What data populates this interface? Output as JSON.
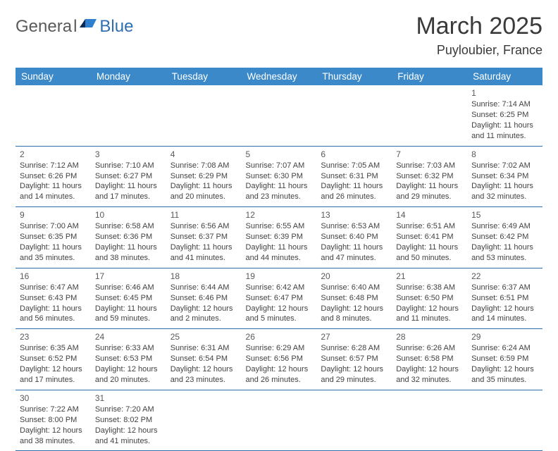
{
  "header": {
    "logo_general": "Genera",
    "logo_l": "l",
    "logo_blue": "Blue",
    "title": "March 2025",
    "location": "Puyloubier, France"
  },
  "colors": {
    "header_bg": "#3b89c9",
    "header_text": "#ffffff",
    "row_border": "#2f6fb0",
    "body_text": "#424242",
    "title_text": "#3a3a3a",
    "logo_gray": "#5a5a5a",
    "logo_blue": "#2f6fb0",
    "background": "#ffffff"
  },
  "calendar": {
    "day_headers": [
      "Sunday",
      "Monday",
      "Tuesday",
      "Wednesday",
      "Thursday",
      "Friday",
      "Saturday"
    ],
    "weeks": [
      [
        null,
        null,
        null,
        null,
        null,
        null,
        {
          "day": "1",
          "sunrise": "Sunrise: 7:14 AM",
          "sunset": "Sunset: 6:25 PM",
          "daylight": "Daylight: 11 hours and 11 minutes."
        }
      ],
      [
        {
          "day": "2",
          "sunrise": "Sunrise: 7:12 AM",
          "sunset": "Sunset: 6:26 PM",
          "daylight": "Daylight: 11 hours and 14 minutes."
        },
        {
          "day": "3",
          "sunrise": "Sunrise: 7:10 AM",
          "sunset": "Sunset: 6:27 PM",
          "daylight": "Daylight: 11 hours and 17 minutes."
        },
        {
          "day": "4",
          "sunrise": "Sunrise: 7:08 AM",
          "sunset": "Sunset: 6:29 PM",
          "daylight": "Daylight: 11 hours and 20 minutes."
        },
        {
          "day": "5",
          "sunrise": "Sunrise: 7:07 AM",
          "sunset": "Sunset: 6:30 PM",
          "daylight": "Daylight: 11 hours and 23 minutes."
        },
        {
          "day": "6",
          "sunrise": "Sunrise: 7:05 AM",
          "sunset": "Sunset: 6:31 PM",
          "daylight": "Daylight: 11 hours and 26 minutes."
        },
        {
          "day": "7",
          "sunrise": "Sunrise: 7:03 AM",
          "sunset": "Sunset: 6:32 PM",
          "daylight": "Daylight: 11 hours and 29 minutes."
        },
        {
          "day": "8",
          "sunrise": "Sunrise: 7:02 AM",
          "sunset": "Sunset: 6:34 PM",
          "daylight": "Daylight: 11 hours and 32 minutes."
        }
      ],
      [
        {
          "day": "9",
          "sunrise": "Sunrise: 7:00 AM",
          "sunset": "Sunset: 6:35 PM",
          "daylight": "Daylight: 11 hours and 35 minutes."
        },
        {
          "day": "10",
          "sunrise": "Sunrise: 6:58 AM",
          "sunset": "Sunset: 6:36 PM",
          "daylight": "Daylight: 11 hours and 38 minutes."
        },
        {
          "day": "11",
          "sunrise": "Sunrise: 6:56 AM",
          "sunset": "Sunset: 6:37 PM",
          "daylight": "Daylight: 11 hours and 41 minutes."
        },
        {
          "day": "12",
          "sunrise": "Sunrise: 6:55 AM",
          "sunset": "Sunset: 6:39 PM",
          "daylight": "Daylight: 11 hours and 44 minutes."
        },
        {
          "day": "13",
          "sunrise": "Sunrise: 6:53 AM",
          "sunset": "Sunset: 6:40 PM",
          "daylight": "Daylight: 11 hours and 47 minutes."
        },
        {
          "day": "14",
          "sunrise": "Sunrise: 6:51 AM",
          "sunset": "Sunset: 6:41 PM",
          "daylight": "Daylight: 11 hours and 50 minutes."
        },
        {
          "day": "15",
          "sunrise": "Sunrise: 6:49 AM",
          "sunset": "Sunset: 6:42 PM",
          "daylight": "Daylight: 11 hours and 53 minutes."
        }
      ],
      [
        {
          "day": "16",
          "sunrise": "Sunrise: 6:47 AM",
          "sunset": "Sunset: 6:43 PM",
          "daylight": "Daylight: 11 hours and 56 minutes."
        },
        {
          "day": "17",
          "sunrise": "Sunrise: 6:46 AM",
          "sunset": "Sunset: 6:45 PM",
          "daylight": "Daylight: 11 hours and 59 minutes."
        },
        {
          "day": "18",
          "sunrise": "Sunrise: 6:44 AM",
          "sunset": "Sunset: 6:46 PM",
          "daylight": "Daylight: 12 hours and 2 minutes."
        },
        {
          "day": "19",
          "sunrise": "Sunrise: 6:42 AM",
          "sunset": "Sunset: 6:47 PM",
          "daylight": "Daylight: 12 hours and 5 minutes."
        },
        {
          "day": "20",
          "sunrise": "Sunrise: 6:40 AM",
          "sunset": "Sunset: 6:48 PM",
          "daylight": "Daylight: 12 hours and 8 minutes."
        },
        {
          "day": "21",
          "sunrise": "Sunrise: 6:38 AM",
          "sunset": "Sunset: 6:50 PM",
          "daylight": "Daylight: 12 hours and 11 minutes."
        },
        {
          "day": "22",
          "sunrise": "Sunrise: 6:37 AM",
          "sunset": "Sunset: 6:51 PM",
          "daylight": "Daylight: 12 hours and 14 minutes."
        }
      ],
      [
        {
          "day": "23",
          "sunrise": "Sunrise: 6:35 AM",
          "sunset": "Sunset: 6:52 PM",
          "daylight": "Daylight: 12 hours and 17 minutes."
        },
        {
          "day": "24",
          "sunrise": "Sunrise: 6:33 AM",
          "sunset": "Sunset: 6:53 PM",
          "daylight": "Daylight: 12 hours and 20 minutes."
        },
        {
          "day": "25",
          "sunrise": "Sunrise: 6:31 AM",
          "sunset": "Sunset: 6:54 PM",
          "daylight": "Daylight: 12 hours and 23 minutes."
        },
        {
          "day": "26",
          "sunrise": "Sunrise: 6:29 AM",
          "sunset": "Sunset: 6:56 PM",
          "daylight": "Daylight: 12 hours and 26 minutes."
        },
        {
          "day": "27",
          "sunrise": "Sunrise: 6:28 AM",
          "sunset": "Sunset: 6:57 PM",
          "daylight": "Daylight: 12 hours and 29 minutes."
        },
        {
          "day": "28",
          "sunrise": "Sunrise: 6:26 AM",
          "sunset": "Sunset: 6:58 PM",
          "daylight": "Daylight: 12 hours and 32 minutes."
        },
        {
          "day": "29",
          "sunrise": "Sunrise: 6:24 AM",
          "sunset": "Sunset: 6:59 PM",
          "daylight": "Daylight: 12 hours and 35 minutes."
        }
      ],
      [
        {
          "day": "30",
          "sunrise": "Sunrise: 7:22 AM",
          "sunset": "Sunset: 8:00 PM",
          "daylight": "Daylight: 12 hours and 38 minutes."
        },
        {
          "day": "31",
          "sunrise": "Sunrise: 7:20 AM",
          "sunset": "Sunset: 8:02 PM",
          "daylight": "Daylight: 12 hours and 41 minutes."
        },
        null,
        null,
        null,
        null,
        null
      ]
    ]
  }
}
